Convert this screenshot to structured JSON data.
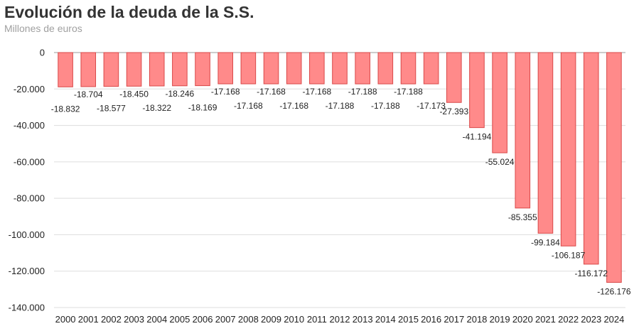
{
  "header": {
    "title": "Evolución de la deuda de la S.S.",
    "subtitle": "Millones de euros"
  },
  "chart_data": {
    "type": "bar",
    "title": "Evolución de la deuda de la S.S.",
    "subtitle": "Millones de euros",
    "xlabel": "",
    "ylabel": "",
    "ylim": [
      -140000,
      0
    ],
    "yticks": [
      0,
      -20000,
      -40000,
      -60000,
      -80000,
      -100000,
      -120000,
      -140000
    ],
    "ytick_labels": [
      "0",
      "-20.000",
      "-40.000",
      "-60.000",
      "-80.000",
      "-100.000",
      "-120.000",
      "-140.000"
    ],
    "grid": true,
    "bar_color": "#ff8a8a",
    "bar_border_color": "#d94848",
    "categories": [
      "2000",
      "2001",
      "2002",
      "2003",
      "2004",
      "2005",
      "2006",
      "2007",
      "2008",
      "2009",
      "2010",
      "2011",
      "2012",
      "2013",
      "2014",
      "2015",
      "2016",
      "2017",
      "2018",
      "2019",
      "2020",
      "2021",
      "2022",
      "2023",
      "2024"
    ],
    "values": [
      -18832,
      -18704,
      -18577,
      -18450,
      -18322,
      -18246,
      -18169,
      -17168,
      -17168,
      -17168,
      -17168,
      -17168,
      -17188,
      -17188,
      -17188,
      -17188,
      -17173,
      -27393,
      -41194,
      -55024,
      -85355,
      -99184,
      -106187,
      -116172,
      -126176
    ],
    "data_labels": [
      "-18.832",
      "-18.704",
      "-18.577",
      "-18.450",
      "-18.322",
      "-18.246",
      "-18.169",
      "-17.168",
      "-17.168",
      "-17.168",
      "-17.168",
      "-17.168",
      "-17.188",
      "-17.188",
      "-17.188",
      "-17.188",
      "-17.173",
      "-27.393",
      "-41.194",
      "-55.024",
      "-85.355",
      "-99.184",
      "-106.187",
      "-116.172",
      "-126.176"
    ]
  }
}
